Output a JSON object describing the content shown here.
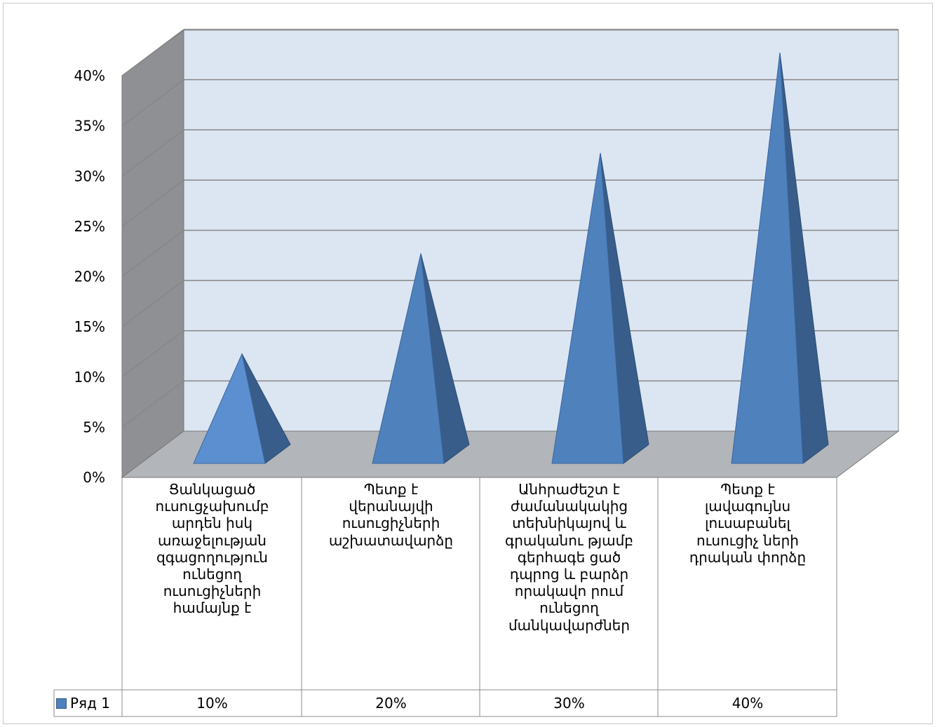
{
  "chart_data": {
    "type": "bar",
    "style": "3d-pyramid",
    "categories": [
      "Ցանկացած ուսուցչախումբ արդեն իսկ առաջելության զգացողություն ունեցող ուսուցիչների համայնք է",
      "Պետք է վերանայվի ուսուցիչների աշխատավարձը",
      "Անհրաժեշտ է ժամանակակից տեխնիկայով և գրականու թյամբ գերհագե ցած դպրոց և  բարձր որակավո րում ունեցող մանկավարժներ",
      "Պետք է լավագույնս լուսաբանել ուսուցիչ ների դրական փորձը"
    ],
    "category_lines": [
      [
        "Ցանկացած",
        "ուսուցչախումբ",
        "արդեն իսկ",
        "առաջելության",
        "զգացողություն",
        "ունեցող",
        "ուսուցիչների",
        "համայնք է"
      ],
      [
        "Պետք է",
        "վերանայվի",
        "ուսուցիչների",
        "աշխատավարձը"
      ],
      [
        "Անհրաժեշտ է",
        "ժամանակակից",
        "տեխնիկայով և",
        "գրականու թյամբ",
        "գերհագե ցած",
        "դպրոց և  բարձր",
        "որակավո րում",
        "ունեցող",
        "մանկավարժներ"
      ],
      [
        "Պետք է",
        "լավագույնս",
        "լուսաբանել",
        "ուսուցիչ ների",
        "դրական փորձը"
      ]
    ],
    "series": [
      {
        "name": "Ряд 1",
        "values": [
          0.1,
          0.2,
          0.3,
          0.4
        ]
      }
    ],
    "data_table_values": [
      "10%",
      "20%",
      "30%",
      "40%"
    ],
    "y_ticks": [
      "0%",
      "5%",
      "10%",
      "15%",
      "20%",
      "25%",
      "30%",
      "35%",
      "40%"
    ],
    "ylim": [
      0,
      0.4
    ],
    "grid": true,
    "data_table": true,
    "colors": {
      "pyramid_front": "#4f81bd",
      "pyramid_side": "#385d8a",
      "back_wall": "#dce6f2",
      "side_wall": "#8e9094",
      "floor": "#b2b5b9",
      "gridline": "#868686"
    }
  }
}
